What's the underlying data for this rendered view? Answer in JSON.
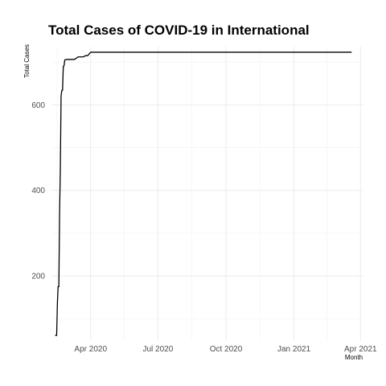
{
  "chart_data": {
    "type": "line",
    "title": "Total Cases of COVID-19 in International",
    "xlabel": "Month",
    "ylabel": "Total Cases",
    "x_ticks": [
      {
        "date": "2020-04-01",
        "label": "Apr 2020"
      },
      {
        "date": "2020-07-01",
        "label": "Jul 2020"
      },
      {
        "date": "2020-10-01",
        "label": "Oct 2020"
      },
      {
        "date": "2021-01-01",
        "label": "Jan 2021"
      },
      {
        "date": "2021-04-01",
        "label": "Apr 2021"
      }
    ],
    "y_ticks": [
      200,
      400,
      600
    ],
    "xlim": [
      "2020-02-08",
      "2021-04-05"
    ],
    "ylim": [
      48,
      736
    ],
    "grid": true,
    "legend": "none",
    "line_color": "#000000",
    "series": [
      {
        "x": [
          "2020-02-13",
          "2020-02-15",
          "2020-02-16",
          "2020-02-17",
          "2020-02-18",
          "2020-02-19",
          "2020-02-20",
          "2020-02-21",
          "2020-02-22",
          "2020-02-23",
          "2020-02-24",
          "2020-02-25",
          "2020-02-26",
          "2020-02-28",
          "2020-03-01",
          "2020-03-05",
          "2020-03-10",
          "2020-03-15",
          "2020-03-22",
          "2020-03-25",
          "2020-03-28",
          "2020-04-01",
          "2021-03-20"
        ],
        "y": [
          61,
          61,
          135,
          175,
          175,
          350,
          450,
          620,
          634,
          634,
          690,
          691,
          705,
          706,
          706,
          706,
          706,
          712,
          712,
          715,
          715,
          723,
          723
        ]
      }
    ]
  }
}
